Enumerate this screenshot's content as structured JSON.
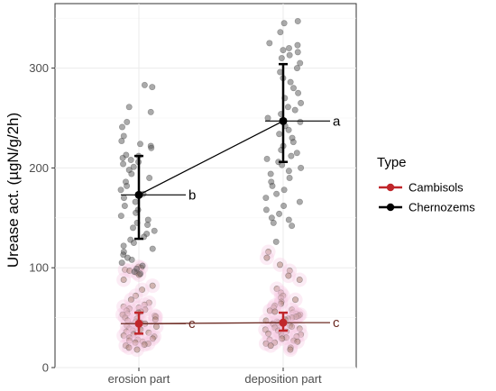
{
  "chart_data": {
    "type": "scatter",
    "ylabel": "Urease act. (µgN/g/2h)",
    "xlabel": "",
    "categories": [
      "erosion part",
      "deposition part"
    ],
    "y_ticks": [
      0,
      100,
      200,
      300
    ],
    "ylim": [
      0,
      350
    ],
    "grid": true,
    "legend": {
      "title": "Type",
      "placement": "right",
      "entries": [
        {
          "name": "Cambisols",
          "color": "#c0262a"
        },
        {
          "name": "Chernozems",
          "color": "#000000"
        }
      ]
    },
    "series": [
      {
        "name": "Cambisols",
        "color": "#c0262a",
        "point_color": "#a67c6b",
        "mean": [
          44,
          45
        ],
        "ci_low": [
          34,
          37
        ],
        "ci_high": [
          55,
          55
        ],
        "letters": [
          "c",
          "c"
        ],
        "points": [
          [
            101,
            100,
            98,
            97,
            95,
            93,
            88,
            82,
            78,
            72,
            68,
            65,
            63,
            61,
            60,
            59,
            58,
            57,
            56,
            55,
            54,
            53,
            52,
            51,
            50,
            49,
            48,
            47,
            46,
            45,
            44,
            43,
            42,
            41,
            40,
            39,
            38,
            37,
            36,
            35,
            34,
            33,
            32,
            31,
            30,
            29,
            28,
            27,
            26,
            25,
            24,
            23,
            22,
            20,
            18
          ],
          [
            116,
            110,
            103,
            97,
            92,
            88,
            79,
            75,
            72,
            70,
            68,
            66,
            64,
            62,
            60,
            58,
            57,
            56,
            55,
            54,
            53,
            52,
            51,
            50,
            49,
            48,
            47,
            46,
            45,
            44,
            43,
            42,
            41,
            40,
            39,
            38,
            37,
            36,
            35,
            34,
            33,
            32,
            31,
            30,
            29,
            28,
            27,
            26,
            25,
            24,
            22,
            20,
            18
          ]
        ]
      },
      {
        "name": "Chernozems",
        "color": "#000000",
        "point_color": "#555555",
        "mean": [
          173,
          247
        ],
        "ci_low": [
          129,
          206
        ],
        "ci_high": [
          212,
          304
        ],
        "letters": [
          "b",
          "a"
        ],
        "points": [
          [
            283,
            281,
            261,
            256,
            246,
            241,
            232,
            227,
            224,
            222,
            220,
            213,
            212,
            210,
            208,
            206,
            204,
            201,
            198,
            194,
            190,
            186,
            182,
            178,
            174,
            170,
            166,
            162,
            158,
            155,
            152,
            148,
            145,
            143,
            140,
            137,
            134,
            131,
            128,
            125,
            122,
            119,
            116,
            113,
            110,
            108,
            105,
            102,
            99,
            96,
            94
          ],
          [
            347,
            345,
            336,
            325,
            323,
            320,
            318,
            316,
            313,
            310,
            305,
            300,
            296,
            290,
            286,
            280,
            275,
            270,
            265,
            261,
            258,
            254,
            250,
            246,
            242,
            238,
            234,
            230,
            226,
            222,
            218,
            215,
            212,
            209,
            206,
            203,
            200,
            197,
            194,
            190,
            186,
            182,
            178,
            174,
            170,
            166,
            162,
            158,
            154,
            150,
            148,
            145,
            142,
            126
          ]
        ]
      }
    ]
  }
}
